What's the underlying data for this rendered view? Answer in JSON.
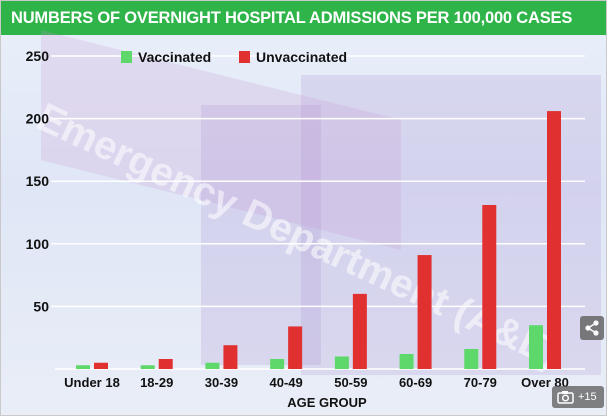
{
  "gallery": {
    "count_label": "+15"
  },
  "colors": {
    "vaccinated": "#5ed86a",
    "unvaccinated": "#e03030",
    "title_bar": "#2fb44a",
    "grid": "#ffffff"
  },
  "chart_data": {
    "type": "bar",
    "title": "NUMBERS OF OVERNIGHT HOSPITAL ADMISSIONS PER 100,000 CASES",
    "xlabel": "AGE GROUP",
    "ylabel": "",
    "ylim": [
      0,
      250
    ],
    "yticks": [
      50,
      100,
      150,
      200,
      250
    ],
    "grid": true,
    "legend_position": "top-left",
    "categories": [
      "Under 18",
      "18-29",
      "30-39",
      "40-49",
      "50-59",
      "60-69",
      "70-79",
      "Over 80"
    ],
    "series": [
      {
        "name": "Vaccinated",
        "color": "#5ed86a",
        "values": [
          3,
          3,
          5,
          8,
          10,
          12,
          16,
          35
        ]
      },
      {
        "name": "Unvaccinated",
        "color": "#e03030",
        "values": [
          5,
          8,
          19,
          34,
          60,
          91,
          131,
          206
        ]
      }
    ]
  }
}
